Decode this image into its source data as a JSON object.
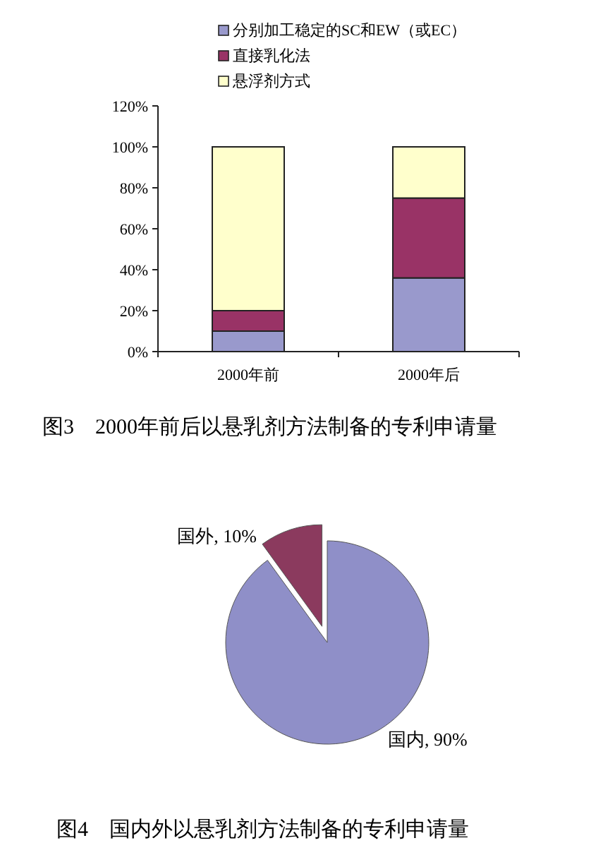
{
  "chart_data": [
    {
      "type": "bar",
      "stacked": true,
      "title": "图3　2000年前后以悬乳剂方法制备的专利申请量",
      "categories": [
        "2000年前",
        "2000年后"
      ],
      "series": [
        {
          "name": "分别加工稳定的SC和EW（或EC）",
          "color": "#9999cc",
          "values": [
            10,
            36
          ]
        },
        {
          "name": "直接乳化法",
          "color": "#993366",
          "values": [
            10,
            39
          ]
        },
        {
          "name": "悬浮剂方式",
          "color": "#ffffcc",
          "values": [
            80,
            25
          ]
        }
      ],
      "ylim": [
        0,
        120
      ],
      "yticks": [
        {
          "value": 0,
          "label": "0%"
        },
        {
          "value": 20,
          "label": "20%"
        },
        {
          "value": 40,
          "label": "40%"
        },
        {
          "value": 60,
          "label": "60%"
        },
        {
          "value": 80,
          "label": "80%"
        },
        {
          "value": 100,
          "label": "100%"
        },
        {
          "value": 120,
          "label": "120%"
        }
      ],
      "legend": "top",
      "grid": false
    },
    {
      "type": "pie",
      "title": "图4　国内外以悬乳剂方法制备的专利申请量",
      "categories": [
        "国内",
        "国外"
      ],
      "values": [
        90,
        10
      ],
      "colors": [
        "#8f8fc8",
        "#8b3a5e"
      ],
      "value_labels": [
        ", 90%",
        ", 10%"
      ]
    }
  ]
}
